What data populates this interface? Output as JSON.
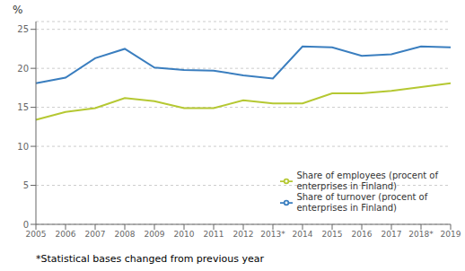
{
  "chart_data": {
    "type": "line",
    "y_label": "%",
    "categories": [
      "2005",
      "2006",
      "2007",
      "2008",
      "2009",
      "2010",
      "2011",
      "2012",
      "2013*",
      "2014",
      "2015",
      "2016",
      "2017",
      "2018*",
      "2019"
    ],
    "series": [
      {
        "name": "Share of turnover (procent of\nenterprises in Finland)",
        "color": "#3a7ebf",
        "values": [
          18.1,
          18.8,
          21.3,
          22.5,
          20.1,
          19.8,
          19.7,
          19.1,
          18.7,
          22.8,
          22.7,
          21.6,
          21.8,
          22.8,
          22.7
        ]
      },
      {
        "name": "Share of employees (procent of\nenterprises in Finland)",
        "color": "#b5c832",
        "values": [
          13.4,
          14.4,
          14.9,
          16.2,
          15.8,
          14.9,
          14.9,
          15.9,
          15.5,
          15.5,
          16.8,
          16.8,
          17.1,
          17.6,
          18.1
        ]
      }
    ],
    "ylim": [
      0,
      26
    ],
    "yticks": [
      0,
      5,
      10,
      15,
      20,
      25
    ],
    "grid": true,
    "legend": "lower right",
    "annotations": [
      "*Statistical bases changed from previous year"
    ]
  }
}
